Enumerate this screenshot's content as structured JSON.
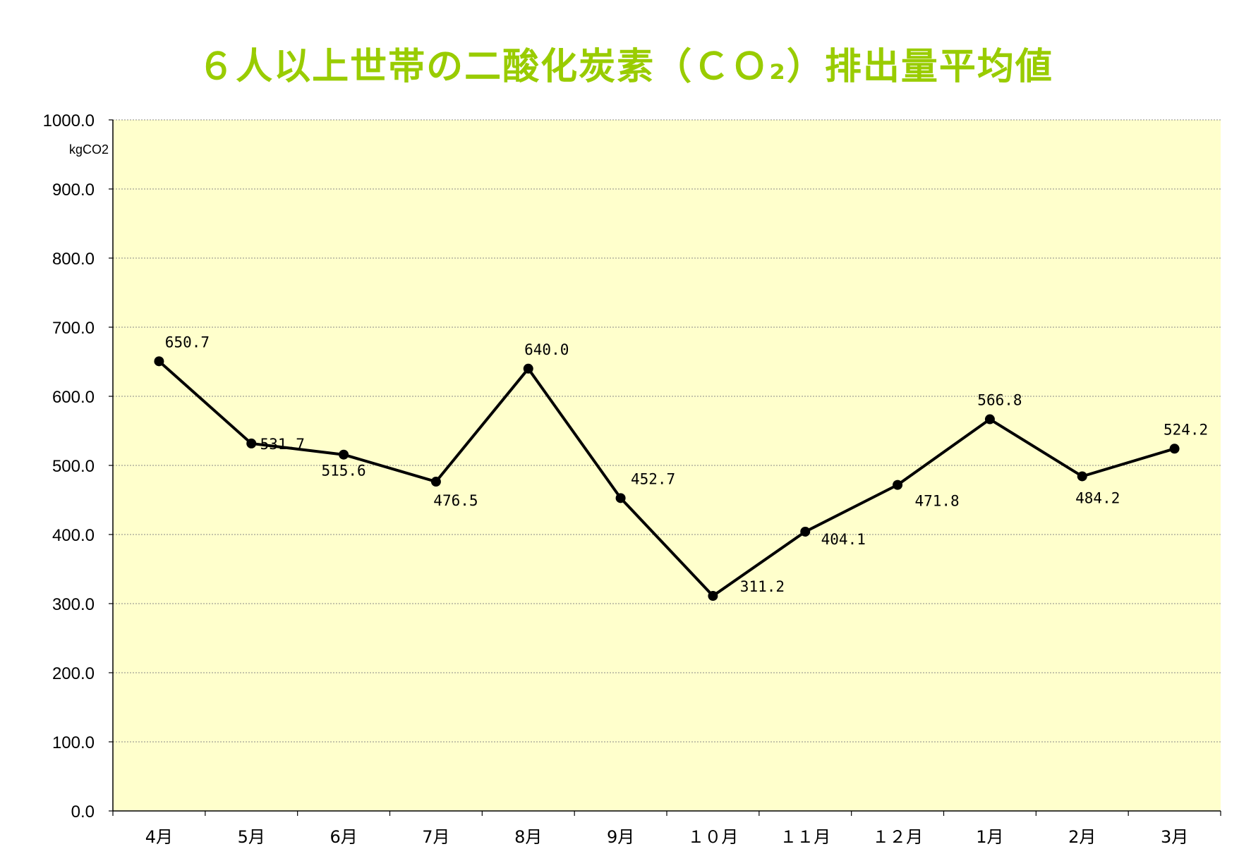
{
  "chart_data": {
    "type": "line",
    "title": "６人以上世帯の二酸化炭素（ＣＯ₂）排出量平均値",
    "ylabel": "kgCO2",
    "xlabel": "",
    "categories": [
      "4月",
      "5月",
      "6月",
      "7月",
      "8月",
      "9月",
      "10月",
      "11月",
      "12月",
      "1月",
      "2月",
      "3月"
    ],
    "series": [
      {
        "values": [
          650.7,
          531.7,
          515.6,
          476.5,
          640.0,
          452.7,
          311.2,
          404.1,
          471.8,
          566.8,
          484.2,
          524.2
        ]
      }
    ],
    "data_labels": [
      "650.7",
      "531.7",
      "515.6",
      "476.5",
      "640.0",
      "452.7",
      "311.2",
      "404.1",
      "471.8",
      "566.8",
      "484.2",
      "524.2"
    ],
    "x_tick_labels": [
      "4月",
      "5月",
      "6月",
      "7月",
      "8月",
      "9月",
      "１０月",
      "１１月",
      "１２月",
      "1月",
      "2月",
      "3月"
    ],
    "y_tick_labels": [
      "0.0",
      "100.0",
      "200.0",
      "300.0",
      "400.0",
      "500.0",
      "600.0",
      "700.0",
      "800.0",
      "900.0",
      "1000.0"
    ],
    "ylim": [
      0,
      1000
    ],
    "y_step": 100,
    "grid": true,
    "legend": "none",
    "colors": {
      "plot_background": "#FFFFCC",
      "line": "#000000",
      "title": "#99CC00",
      "gridline": "#888888"
    }
  }
}
